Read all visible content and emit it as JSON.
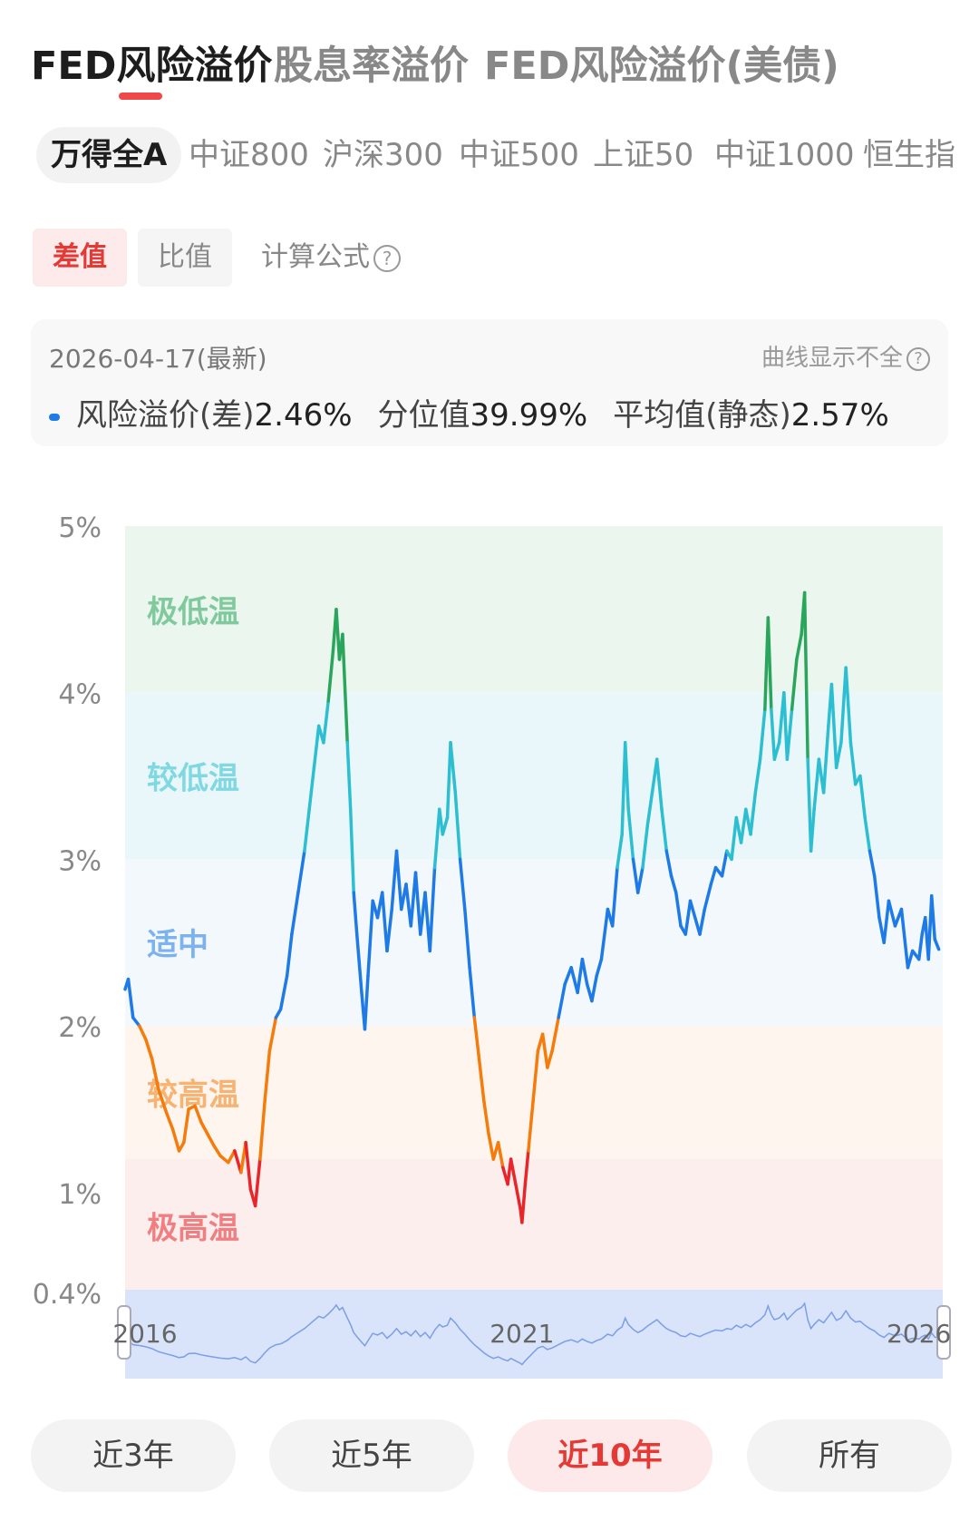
{
  "top_tabs": [
    "FED风险溢价",
    "股息率溢价",
    "FED风险溢价(美债)"
  ],
  "index_tabs": [
    "万得全A",
    "中证800",
    "沪深300",
    "中证500",
    "上证50",
    "中证1000",
    "恒生指"
  ],
  "mode": {
    "diff": "差值",
    "ratio": "比值",
    "formula": "计算公式"
  },
  "info": {
    "date": "2026-04-17(最新)",
    "warning": "曲线显示不全",
    "risk_label": "风险溢价(差)",
    "risk_value": "2.46%",
    "pct_label": "分位值",
    "pct_value": "39.99%",
    "avg_label": "平均值(静态)",
    "avg_value": "2.57%"
  },
  "periods": [
    "近3年",
    "近5年",
    "近10年",
    "所有"
  ],
  "chart_data": {
    "type": "line",
    "y_ticks": [
      "5%",
      "4%",
      "3%",
      "2%",
      "1%",
      "0.4%"
    ],
    "y_tick_values": [
      5,
      4,
      3,
      2,
      1,
      0.4
    ],
    "ylim": [
      0.4,
      5
    ],
    "xlim": [
      2016.0,
      2026.3
    ],
    "zones": [
      {
        "label": "极低温",
        "from": 4.0,
        "to": 5.0,
        "color": "#2aa55c",
        "bg": "#eaf6ee"
      },
      {
        "label": "较低温",
        "from": 3.0,
        "to": 4.0,
        "color": "#2bbfd1",
        "bg": "#eaf7fa"
      },
      {
        "label": "适中",
        "from": 2.0,
        "to": 3.0,
        "color": "#1e7ae6",
        "bg": "#f3f8fd"
      },
      {
        "label": "较高温",
        "from": 1.2,
        "to": 2.0,
        "color": "#f57c0c",
        "bg": "#fdf5ee"
      },
      {
        "label": "极高温",
        "from": 0.4,
        "to": 1.2,
        "color": "#e8262a",
        "bg": "#fdeeee"
      }
    ],
    "navigator_ticks": [
      "2016",
      "2021",
      "2026"
    ],
    "navigator_tick_values": [
      2016,
      2021,
      2026
    ],
    "series": [
      {
        "points": [
          [
            2016.0,
            2.22
          ],
          [
            2016.04,
            2.28
          ],
          [
            2016.1,
            2.05
          ],
          [
            2016.18,
            2.0
          ],
          [
            2016.26,
            1.92
          ],
          [
            2016.34,
            1.8
          ],
          [
            2016.42,
            1.62
          ],
          [
            2016.52,
            1.48
          ],
          [
            2016.6,
            1.38
          ],
          [
            2016.68,
            1.25
          ],
          [
            2016.74,
            1.3
          ],
          [
            2016.8,
            1.5
          ],
          [
            2016.88,
            1.52
          ],
          [
            2016.96,
            1.42
          ],
          [
            2017.04,
            1.35
          ],
          [
            2017.12,
            1.28
          ],
          [
            2017.2,
            1.22
          ],
          [
            2017.3,
            1.18
          ],
          [
            2017.38,
            1.25
          ],
          [
            2017.46,
            1.12
          ],
          [
            2017.52,
            1.3
          ],
          [
            2017.58,
            1.02
          ],
          [
            2017.64,
            0.92
          ],
          [
            2017.7,
            1.2
          ],
          [
            2017.76,
            1.55
          ],
          [
            2017.82,
            1.85
          ],
          [
            2017.9,
            2.05
          ],
          [
            2017.96,
            2.1
          ],
          [
            2018.04,
            2.3
          ],
          [
            2018.1,
            2.55
          ],
          [
            2018.18,
            2.8
          ],
          [
            2018.26,
            3.05
          ],
          [
            2018.32,
            3.3
          ],
          [
            2018.38,
            3.55
          ],
          [
            2018.44,
            3.8
          ],
          [
            2018.5,
            3.7
          ],
          [
            2018.56,
            3.95
          ],
          [
            2018.62,
            4.25
          ],
          [
            2018.66,
            4.5
          ],
          [
            2018.7,
            4.2
          ],
          [
            2018.74,
            4.35
          ],
          [
            2018.8,
            3.7
          ],
          [
            2018.84,
            3.3
          ],
          [
            2018.88,
            2.8
          ],
          [
            2018.92,
            2.55
          ],
          [
            2018.98,
            2.2
          ],
          [
            2019.02,
            1.98
          ],
          [
            2019.06,
            2.3
          ],
          [
            2019.12,
            2.75
          ],
          [
            2019.18,
            2.65
          ],
          [
            2019.24,
            2.8
          ],
          [
            2019.3,
            2.45
          ],
          [
            2019.36,
            2.7
          ],
          [
            2019.42,
            3.05
          ],
          [
            2019.48,
            2.7
          ],
          [
            2019.54,
            2.85
          ],
          [
            2019.6,
            2.6
          ],
          [
            2019.66,
            2.92
          ],
          [
            2019.72,
            2.55
          ],
          [
            2019.78,
            2.8
          ],
          [
            2019.84,
            2.45
          ],
          [
            2019.9,
            2.95
          ],
          [
            2019.96,
            3.3
          ],
          [
            2020.0,
            3.15
          ],
          [
            2020.06,
            3.25
          ],
          [
            2020.1,
            3.7
          ],
          [
            2020.16,
            3.4
          ],
          [
            2020.22,
            3.0
          ],
          [
            2020.28,
            2.7
          ],
          [
            2020.34,
            2.35
          ],
          [
            2020.4,
            2.05
          ],
          [
            2020.46,
            1.8
          ],
          [
            2020.52,
            1.55
          ],
          [
            2020.58,
            1.35
          ],
          [
            2020.64,
            1.2
          ],
          [
            2020.7,
            1.3
          ],
          [
            2020.76,
            1.15
          ],
          [
            2020.82,
            1.05
          ],
          [
            2020.86,
            1.2
          ],
          [
            2020.92,
            1.05
          ],
          [
            2020.98,
            0.9
          ],
          [
            2021.0,
            0.82
          ],
          [
            2021.04,
            1.05
          ],
          [
            2021.08,
            1.25
          ],
          [
            2021.14,
            1.55
          ],
          [
            2021.2,
            1.85
          ],
          [
            2021.26,
            1.95
          ],
          [
            2021.32,
            1.75
          ],
          [
            2021.38,
            1.85
          ],
          [
            2021.46,
            2.05
          ],
          [
            2021.54,
            2.25
          ],
          [
            2021.62,
            2.35
          ],
          [
            2021.7,
            2.2
          ],
          [
            2021.76,
            2.4
          ],
          [
            2021.82,
            2.25
          ],
          [
            2021.88,
            2.15
          ],
          [
            2021.94,
            2.3
          ],
          [
            2022.0,
            2.4
          ],
          [
            2022.08,
            2.7
          ],
          [
            2022.14,
            2.6
          ],
          [
            2022.2,
            2.95
          ],
          [
            2022.26,
            3.15
          ],
          [
            2022.3,
            3.7
          ],
          [
            2022.34,
            3.3
          ],
          [
            2022.4,
            3.0
          ],
          [
            2022.46,
            2.8
          ],
          [
            2022.52,
            2.95
          ],
          [
            2022.58,
            3.2
          ],
          [
            2022.64,
            3.4
          ],
          [
            2022.7,
            3.6
          ],
          [
            2022.76,
            3.3
          ],
          [
            2022.82,
            3.05
          ],
          [
            2022.88,
            2.9
          ],
          [
            2022.94,
            2.8
          ],
          [
            2023.0,
            2.6
          ],
          [
            2023.06,
            2.55
          ],
          [
            2023.12,
            2.75
          ],
          [
            2023.18,
            2.65
          ],
          [
            2023.24,
            2.55
          ],
          [
            2023.3,
            2.7
          ],
          [
            2023.38,
            2.85
          ],
          [
            2023.44,
            2.95
          ],
          [
            2023.52,
            2.9
          ],
          [
            2023.58,
            3.05
          ],
          [
            2023.64,
            3.0
          ],
          [
            2023.7,
            3.25
          ],
          [
            2023.76,
            3.1
          ],
          [
            2023.82,
            3.3
          ],
          [
            2023.88,
            3.15
          ],
          [
            2023.94,
            3.4
          ],
          [
            2024.0,
            3.6
          ],
          [
            2024.06,
            3.9
          ],
          [
            2024.1,
            4.45
          ],
          [
            2024.14,
            3.9
          ],
          [
            2024.18,
            3.6
          ],
          [
            2024.24,
            3.7
          ],
          [
            2024.3,
            4.0
          ],
          [
            2024.34,
            3.6
          ],
          [
            2024.4,
            3.9
          ],
          [
            2024.46,
            4.2
          ],
          [
            2024.52,
            4.35
          ],
          [
            2024.56,
            4.6
          ],
          [
            2024.6,
            3.6
          ],
          [
            2024.64,
            3.05
          ],
          [
            2024.68,
            3.3
          ],
          [
            2024.74,
            3.6
          ],
          [
            2024.8,
            3.4
          ],
          [
            2024.86,
            3.8
          ],
          [
            2024.9,
            4.05
          ],
          [
            2024.96,
            3.55
          ],
          [
            2025.02,
            3.7
          ],
          [
            2025.08,
            4.15
          ],
          [
            2025.14,
            3.7
          ],
          [
            2025.2,
            3.45
          ],
          [
            2025.26,
            3.5
          ],
          [
            2025.32,
            3.25
          ],
          [
            2025.38,
            3.05
          ],
          [
            2025.44,
            2.9
          ],
          [
            2025.5,
            2.65
          ],
          [
            2025.56,
            2.5
          ],
          [
            2025.62,
            2.75
          ],
          [
            2025.7,
            2.6
          ],
          [
            2025.78,
            2.7
          ],
          [
            2025.86,
            2.35
          ],
          [
            2025.92,
            2.45
          ],
          [
            2026.0,
            2.4
          ],
          [
            2026.04,
            2.55
          ],
          [
            2026.08,
            2.65
          ],
          [
            2026.12,
            2.4
          ],
          [
            2026.16,
            2.78
          ],
          [
            2026.2,
            2.52
          ],
          [
            2026.25,
            2.46
          ]
        ]
      }
    ]
  }
}
